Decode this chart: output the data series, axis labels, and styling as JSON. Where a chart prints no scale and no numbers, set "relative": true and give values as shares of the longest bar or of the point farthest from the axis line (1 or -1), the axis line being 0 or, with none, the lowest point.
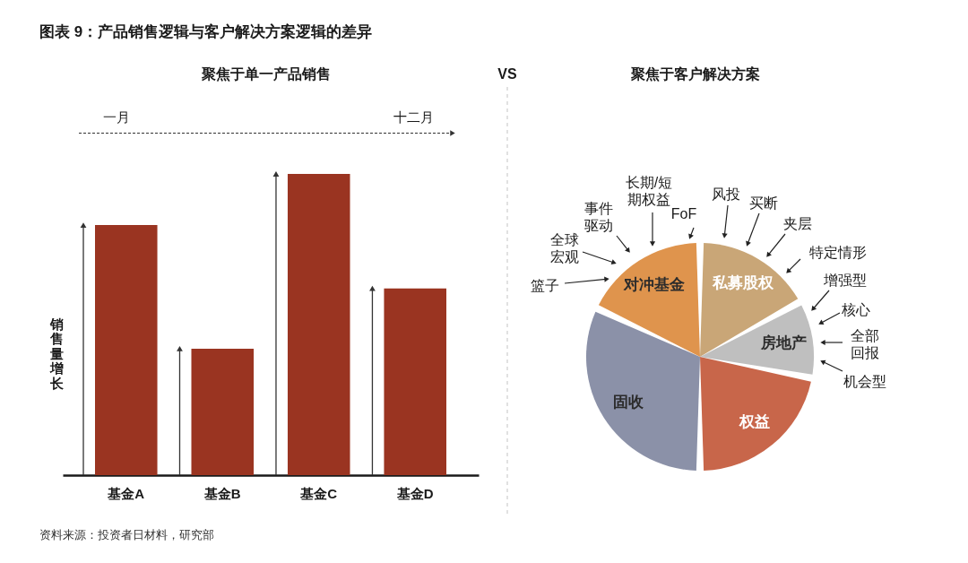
{
  "chart_data": [
    {
      "type": "other",
      "title": "图表 9：产品销售逻辑与客户解决方案逻辑的差异",
      "annotations": [
        "VS",
        "资料来源：投资者日材料，研究部"
      ]
    },
    {
      "type": "bar",
      "title": "聚焦于单一产品销售",
      "categories": [
        "基金A",
        "基金B",
        "基金C",
        "基金D"
      ],
      "series": [
        {
          "type": "bar",
          "color": "#9a3421",
          "values": [
            0.83,
            0.42,
            1,
            0.62
          ]
        },
        {
          "type": "lollipop",
          "color": "#333333",
          "values": [
            0.83,
            0.42,
            1,
            0.62
          ]
        }
      ],
      "marker": "triangle",
      "relative": true,
      "ylabel": "销售量增长",
      "annotations": [
        "一月",
        "十二月"
      ]
    },
    {
      "type": "pie",
      "title": "聚焦于客户解决方案",
      "categories": [
        "私募股权",
        "房地产",
        "权益",
        "固收",
        "对冲基金"
      ],
      "values": [
        17,
        11,
        22,
        32,
        18
      ],
      "colors": [
        "#c9a677",
        "#bfbfbf",
        "#c8664a",
        "#8b91a8",
        "#df944d"
      ],
      "annotations": [
        "篮子",
        "全球宏观",
        "事件驱动",
        "长期/短期权益",
        "FoF",
        "风投",
        "买断",
        "夹层",
        "特定情形",
        "增强型",
        "核心",
        "全部回报",
        "机会型"
      ]
    }
  ]
}
